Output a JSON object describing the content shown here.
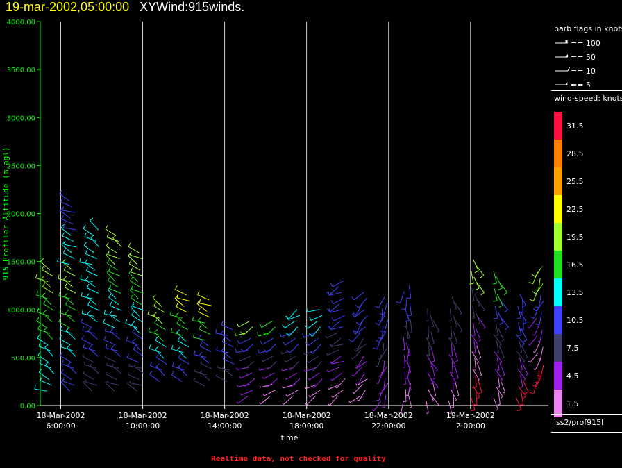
{
  "header": {
    "date_text": "19-mar-2002,05:00:00",
    "product_text": "XYWind:915winds."
  },
  "footnote": "Realtime data, not checked for quality",
  "legend": {
    "barb_title": "barb flags in knots",
    "barb_entries": [
      "== 100",
      "== 50",
      "== 10",
      "== 5"
    ],
    "speed_title": "wind-speed: knots",
    "station": "iss2/prof915l"
  },
  "colors": {
    "axis_y": "#00ff00",
    "axis_x": "#ffffff",
    "grid": "#ffffff",
    "title_date": "#ffff00",
    "footnote": "#ff2020"
  },
  "colorscale": [
    {
      "label": "31.5",
      "color": "#ff1040"
    },
    {
      "label": "28.5",
      "color": "#ff8000"
    },
    {
      "label": "25.5",
      "color": "#ffa000"
    },
    {
      "label": "22.5",
      "color": "#ffff00"
    },
    {
      "label": "19.5",
      "color": "#a0ff30"
    },
    {
      "label": "16.5",
      "color": "#20e020"
    },
    {
      "label": "13.5",
      "color": "#00ffff"
    },
    {
      "label": "10.5",
      "color": "#4040ff"
    },
    {
      "label": "7.5",
      "color": "#404070"
    },
    {
      "label": "4.5",
      "color": "#a020f0"
    },
    {
      "label": "1.5",
      "color": "#ee82ee"
    }
  ],
  "chart_data": {
    "type": "wind-barb time-height",
    "ylabel": "915 Profiler Altitude (m agl)",
    "xlabel": "time",
    "ylim": [
      0,
      4000
    ],
    "yticks": [
      "0.00",
      "500.00",
      "1000.00",
      "1500.00",
      "2000.00",
      "2500.00",
      "3000.00",
      "3500.00",
      "4000.00"
    ],
    "xticks": [
      {
        "date": "18-Mar-2002",
        "time": "6:00:00"
      },
      {
        "date": "18-Mar-2002",
        "time": "10:00:00"
      },
      {
        "date": "18-Mar-2002",
        "time": "14:00:00"
      },
      {
        "date": "18-Mar-2002",
        "time": "18:00:00"
      },
      {
        "date": "18-Mar-2002",
        "time": "22:00:00"
      },
      {
        "date": "19-Mar-2002",
        "time": "2:00:00"
      }
    ],
    "xlim_hours": [
      5.0,
      29.8
    ],
    "grid_vertical": true,
    "profiles": [
      {
        "t": 5.5,
        "top": 1450,
        "base": 150,
        "dir": 300,
        "spd": [
          13.5,
          13.5,
          16.5,
          16.5,
          19.5
        ]
      },
      {
        "t": 6.6,
        "top": 2150,
        "base": 150,
        "dir": 300,
        "spd": [
          10.5,
          13.5,
          16.5,
          19.5,
          13.5,
          10.5
        ]
      },
      {
        "t": 7.7,
        "top": 1850,
        "base": 150,
        "dir": 300,
        "spd": [
          7.5,
          10.5,
          13.5,
          13.5,
          13.5
        ]
      },
      {
        "t": 8.8,
        "top": 1800,
        "base": 150,
        "dir": 300,
        "spd": [
          7.5,
          10.5,
          13.5,
          16.5,
          19.5
        ]
      },
      {
        "t": 9.9,
        "top": 1600,
        "base": 150,
        "dir": 300,
        "spd": [
          7.5,
          10.5,
          13.5,
          16.5,
          19.5
        ]
      },
      {
        "t": 11.0,
        "top": 1050,
        "base": 250,
        "dir": 300,
        "spd": [
          10.5,
          13.5,
          16.5,
          19.5
        ]
      },
      {
        "t": 12.1,
        "top": 1150,
        "base": 250,
        "dir": 300,
        "spd": [
          10.5,
          13.5,
          16.5,
          22.5
        ]
      },
      {
        "t": 13.2,
        "top": 1100,
        "base": 200,
        "dir": 300,
        "spd": [
          7.5,
          10.5,
          16.5,
          22.5
        ]
      },
      {
        "t": 14.3,
        "top": 800,
        "base": 250,
        "dir": 300,
        "spd": [
          7.5,
          10.5,
          10.5
        ]
      },
      {
        "t": 15.3,
        "top": 900,
        "base": 100,
        "dir": 240,
        "spd": [
          4.5,
          4.5,
          7.5,
          10.5,
          19.5
        ]
      },
      {
        "t": 16.4,
        "top": 900,
        "base": 100,
        "dir": 240,
        "spd": [
          1.5,
          4.5,
          7.5,
          10.5,
          16.5
        ]
      },
      {
        "t": 17.5,
        "top": 1000,
        "base": 100,
        "dir": 240,
        "spd": [
          1.5,
          4.5,
          7.5,
          10.5,
          13.5
        ]
      },
      {
        "t": 18.6,
        "top": 1000,
        "base": 100,
        "dir": 240,
        "spd": [
          1.5,
          4.5,
          7.5,
          10.5,
          13.5
        ]
      },
      {
        "t": 19.7,
        "top": 1300,
        "base": 100,
        "dir": 240,
        "spd": [
          1.5,
          4.5,
          7.5,
          10.5,
          10.5
        ]
      },
      {
        "t": 20.8,
        "top": 1200,
        "base": 100,
        "dir": 220,
        "spd": [
          1.5,
          4.5,
          7.5,
          10.5,
          10.5
        ]
      },
      {
        "t": 21.8,
        "top": 1150,
        "base": 50,
        "dir": 200,
        "spd": [
          4.5,
          4.5,
          7.5,
          10.5,
          10.5
        ]
      },
      {
        "t": 22.9,
        "top": 1250,
        "base": 50,
        "dir": 180,
        "spd": [
          1.5,
          4.5,
          4.5,
          7.5,
          10.5
        ]
      },
      {
        "t": 24.0,
        "top": 1050,
        "base": 50,
        "dir": 160,
        "spd": [
          1.5,
          4.5,
          4.5,
          7.5,
          7.5
        ]
      },
      {
        "t": 25.1,
        "top": 1150,
        "base": 50,
        "dir": 160,
        "spd": [
          1.5,
          4.5,
          4.5,
          7.5,
          7.5
        ]
      },
      {
        "t": 26.2,
        "top": 1550,
        "base": 80,
        "dir": 160,
        "spd": [
          31.5,
          1.5,
          4.5,
          7.5,
          19.5
        ]
      },
      {
        "t": 27.3,
        "top": 1400,
        "base": 80,
        "dir": 160,
        "spd": [
          1.5,
          4.5,
          7.5,
          10.5,
          16.5
        ]
      },
      {
        "t": 28.4,
        "top": 1200,
        "base": 80,
        "dir": 160,
        "spd": [
          31.5,
          4.5,
          7.5,
          10.5,
          10.5
        ]
      },
      {
        "t": 29.4,
        "top": 1450,
        "base": 250,
        "dir": 200,
        "spd": [
          31.5,
          1.5,
          4.5,
          10.5,
          19.5
        ]
      }
    ]
  }
}
